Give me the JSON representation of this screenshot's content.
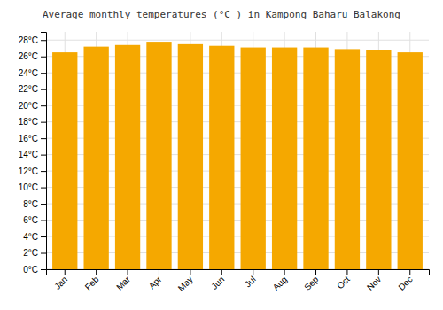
{
  "chart_data": {
    "type": "bar",
    "title": "Average monthly temperatures (°C ) in Kampong Baharu Balakong",
    "categories": [
      "Jan",
      "Feb",
      "Mar",
      "Apr",
      "May",
      "Jun",
      "Jul",
      "Aug",
      "Sep",
      "Oct",
      "Nov",
      "Dec"
    ],
    "values": [
      26.5,
      27.2,
      27.4,
      27.8,
      27.5,
      27.3,
      27.1,
      27.1,
      27.1,
      26.9,
      26.8,
      26.5
    ],
    "color": "#F5A800",
    "ylim": [
      0,
      29
    ],
    "yticks": [
      {
        "value": 0,
        "label": "0°C"
      },
      {
        "value": 2,
        "label": "2°C"
      },
      {
        "value": 4,
        "label": "4°C"
      },
      {
        "value": 6,
        "label": "6°C"
      },
      {
        "value": 8,
        "label": "8°C"
      },
      {
        "value": 10,
        "label": "10°C"
      },
      {
        "value": 12,
        "label": "12°C"
      },
      {
        "value": 14,
        "label": "14°C"
      },
      {
        "value": 16,
        "label": "16°C"
      },
      {
        "value": 18,
        "label": "18°C"
      },
      {
        "value": 20,
        "label": "20°C"
      },
      {
        "value": 22,
        "label": "22°C"
      },
      {
        "value": 24,
        "label": "24°C"
      },
      {
        "value": 26,
        "label": "26°C"
      },
      {
        "value": 28,
        "label": "28°C"
      }
    ],
    "grid": true
  }
}
